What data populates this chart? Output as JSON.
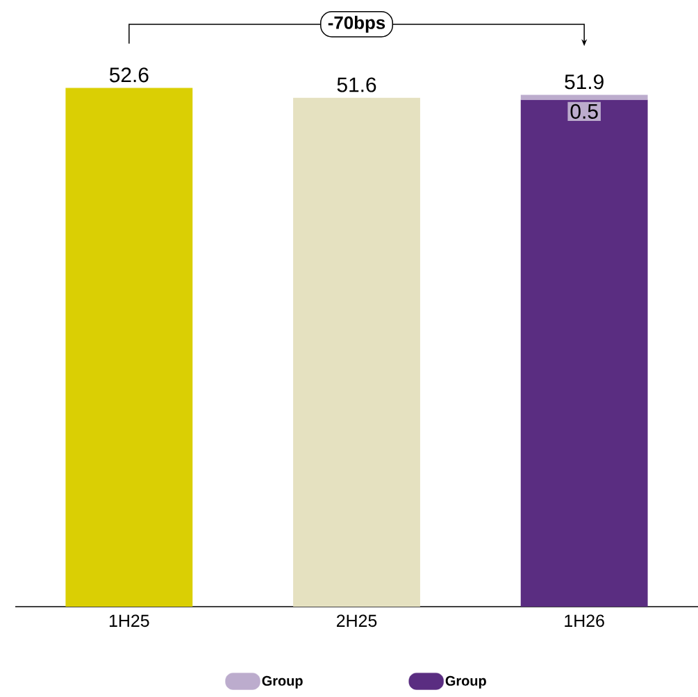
{
  "chart_data": {
    "type": "bar",
    "stacked": true,
    "categories": [
      "1H25",
      "2H25",
      "1H26"
    ],
    "tick_labels": "x",
    "legend": "bottom",
    "series": [
      {
        "name": "Group",
        "color": "#5a2d81",
        "colors": [
          "#dacf04",
          "#e5e1c0",
          "#5a2d81"
        ],
        "values": [
          52.6,
          51.6,
          51.4
        ],
        "value_labels": [
          "52.6",
          "51.6",
          null
        ]
      },
      {
        "name": "Group",
        "color": "#bcaccd",
        "values": [
          null,
          null,
          0.5
        ],
        "value_labels": [
          null,
          null,
          "0.5"
        ]
      }
    ],
    "totals": [
      null,
      null,
      "51.9"
    ],
    "annotations": [
      "-70bps"
    ]
  }
}
